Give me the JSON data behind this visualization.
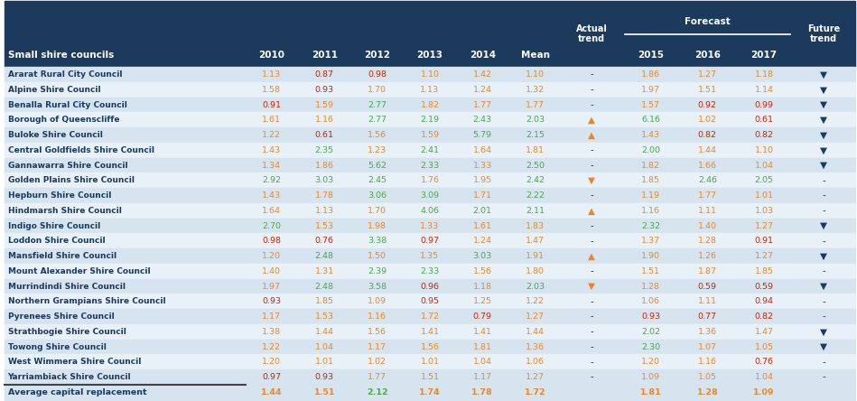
{
  "header_bg": "#1b3a5c",
  "header_fg": "#ffffff",
  "row_bg_even": "#d6e4f0",
  "row_bg_odd": "#e8f0f8",
  "footer_bg": "#d6e4f0",
  "col_orange": "#e8872a",
  "col_green": "#4ca64c",
  "col_red": "#cc2200",
  "col_dark": "#333333",
  "name_color": "#1b3a5c",
  "rows": [
    [
      "Ararat Rural City Council",
      "1.13",
      "0.87",
      "0.98",
      "1.10",
      "1.42",
      "1.10",
      "-",
      "1.86",
      "1.27",
      "1.18",
      "▼"
    ],
    [
      "Alpine Shire Council",
      "1.58",
      "0.93",
      "1.70",
      "1.13",
      "1.24",
      "1.32",
      "-",
      "1.97",
      "1.51",
      "1.14",
      "▼"
    ],
    [
      "Benalla Rural City Council",
      "0.91",
      "1.59",
      "2.77",
      "1.82",
      "1.77",
      "1.77",
      "-",
      "1.57",
      "0.92",
      "0.99",
      "▼"
    ],
    [
      "Borough of Queenscliffe",
      "1.61",
      "1.16",
      "2.77",
      "2.19",
      "2.43",
      "2.03",
      "▲",
      "6.16",
      "1.02",
      "0.61",
      "▼"
    ],
    [
      "Buloke Shire Council",
      "1.22",
      "0.61",
      "1.56",
      "1.59",
      "5.79",
      "2.15",
      "▲",
      "1.43",
      "0.82",
      "0.82",
      "▼"
    ],
    [
      "Central Goldfields Shire Council",
      "1.43",
      "2.35",
      "1.23",
      "2.41",
      "1.64",
      "1.81",
      "-",
      "2.00",
      "1.44",
      "1.10",
      "▼"
    ],
    [
      "Gannawarra Shire Council",
      "1.34",
      "1.86",
      "5.62",
      "2.33",
      "1.33",
      "2.50",
      "-",
      "1.82",
      "1.66",
      "1.04",
      "▼"
    ],
    [
      "Golden Plains Shire Council",
      "2.92",
      "3.03",
      "2.45",
      "1.76",
      "1.95",
      "2.42",
      "▼",
      "1.85",
      "2.46",
      "2.05",
      "-"
    ],
    [
      "Hepburn Shire Council",
      "1.43",
      "1.78",
      "3.06",
      "3.09",
      "1.71",
      "2.22",
      "-",
      "1.19",
      "1.77",
      "1.01",
      "-"
    ],
    [
      "Hindmarsh Shire Council",
      "1.64",
      "1.13",
      "1.70",
      "4.06",
      "2.01",
      "2.11",
      "▲",
      "1.16",
      "1.11",
      "1.03",
      "-"
    ],
    [
      "Indigo Shire Council",
      "2.70",
      "1.53",
      "1.98",
      "1.33",
      "1.61",
      "1.83",
      "-",
      "2.32",
      "1.40",
      "1.27",
      "▼"
    ],
    [
      "Loddon Shire Council",
      "0.98",
      "0.76",
      "3.38",
      "0.97",
      "1.24",
      "1.47",
      "-",
      "1.37",
      "1.28",
      "0.91",
      "-"
    ],
    [
      "Mansfield Shire Council",
      "1.20",
      "2.48",
      "1.50",
      "1.35",
      "3.03",
      "1.91",
      "▲",
      "1.90",
      "1.26",
      "1.27",
      "▼"
    ],
    [
      "Mount Alexander Shire Council",
      "1.40",
      "1.31",
      "2.39",
      "2.33",
      "1.56",
      "1.80",
      "-",
      "1.51",
      "1.87",
      "1.85",
      "-"
    ],
    [
      "Murrindindi Shire Council",
      "1.97",
      "2.48",
      "3.58",
      "0.96",
      "1.18",
      "2.03",
      "▼",
      "1.28",
      "0.59",
      "0.59",
      "▼"
    ],
    [
      "Northern Grampians Shire Council",
      "0.93",
      "1.85",
      "1.09",
      "0.95",
      "1.25",
      "1.22",
      "-",
      "1.06",
      "1.11",
      "0.94",
      "-"
    ],
    [
      "Pyrenees Shire Council",
      "1.17",
      "1.53",
      "1.16",
      "1.72",
      "0.79",
      "1.27",
      "-",
      "0.93",
      "0.77",
      "0.82",
      "-"
    ],
    [
      "Strathbogie Shire Council",
      "1.38",
      "1.44",
      "1.56",
      "1.41",
      "1.41",
      "1.44",
      "-",
      "2.02",
      "1.36",
      "1.47",
      "▼"
    ],
    [
      "Towong Shire Council",
      "1.22",
      "1.04",
      "1.17",
      "1.56",
      "1.81",
      "1.36",
      "-",
      "2.30",
      "1.07",
      "1.05",
      "▼"
    ],
    [
      "West Wimmera Shire Council",
      "1.20",
      "1.01",
      "1.02",
      "1.01",
      "1.04",
      "1.06",
      "-",
      "1.20",
      "1.16",
      "0.76",
      "-"
    ],
    [
      "Yarriambiack Shire Council",
      "0.97",
      "0.93",
      "1.77",
      "1.51",
      "1.17",
      "1.27",
      "-",
      "1.09",
      "1.05",
      "1.04",
      "-"
    ]
  ],
  "footer": [
    "Average capital replacement",
    "1.44",
    "1.51",
    "2.12",
    "1.74",
    "1.78",
    "1.72",
    "",
    "1.81",
    "1.28",
    "1.09",
    ""
  ]
}
